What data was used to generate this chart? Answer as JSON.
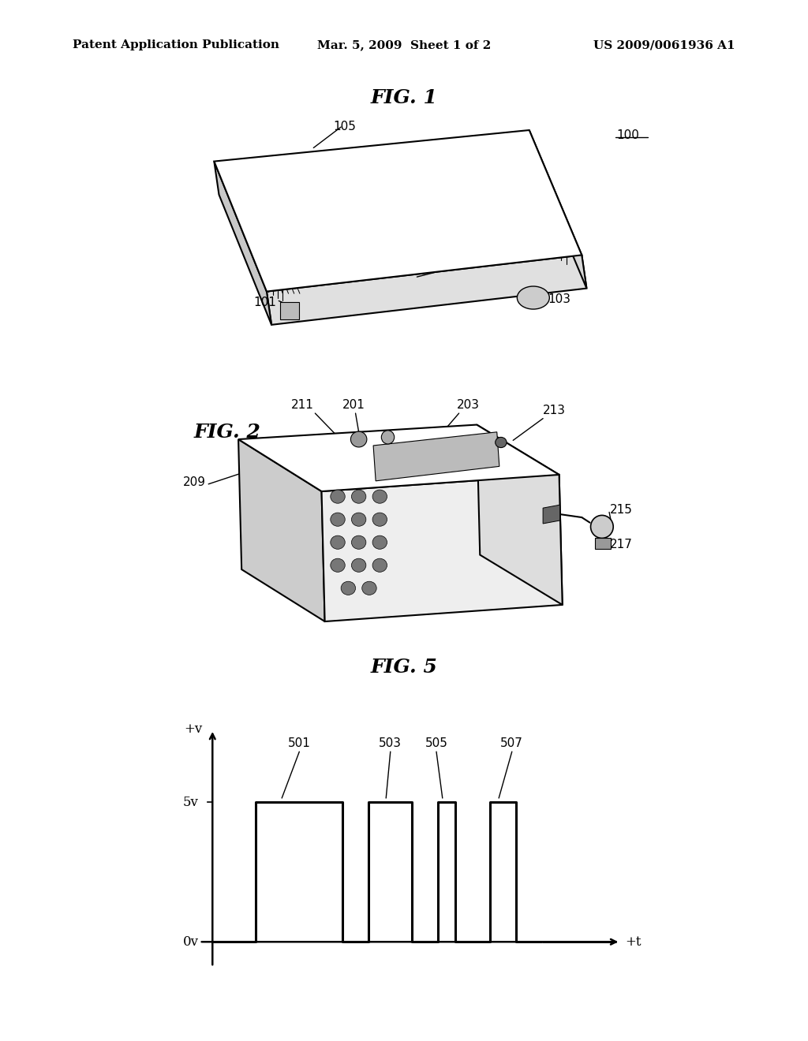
{
  "background_color": "#ffffff",
  "header_left": "Patent Application Publication",
  "header_center": "Mar. 5, 2009  Sheet 1 of 2",
  "header_right": "US 2009/0061936 A1",
  "header_fontsize": 11,
  "fig1_title": "FIG. 1",
  "fig2_title": "FIG. 2",
  "fig5_title": "FIG. 5",
  "title_fontsize": 18,
  "label_fontsize": 11,
  "line_color": "#000000",
  "line_width": 1.5,
  "pulse_x": [
    0,
    0.5,
    0.5,
    1.5,
    1.5,
    1.8,
    1.8,
    2.3,
    2.3,
    2.6,
    2.6,
    2.8,
    2.8,
    3.2,
    3.2,
    3.5,
    3.5,
    3.8
  ],
  "pulse_y": [
    0,
    0,
    1,
    1,
    0,
    0,
    1,
    1,
    0,
    0,
    1,
    1,
    0,
    0,
    1,
    1,
    0,
    0
  ]
}
